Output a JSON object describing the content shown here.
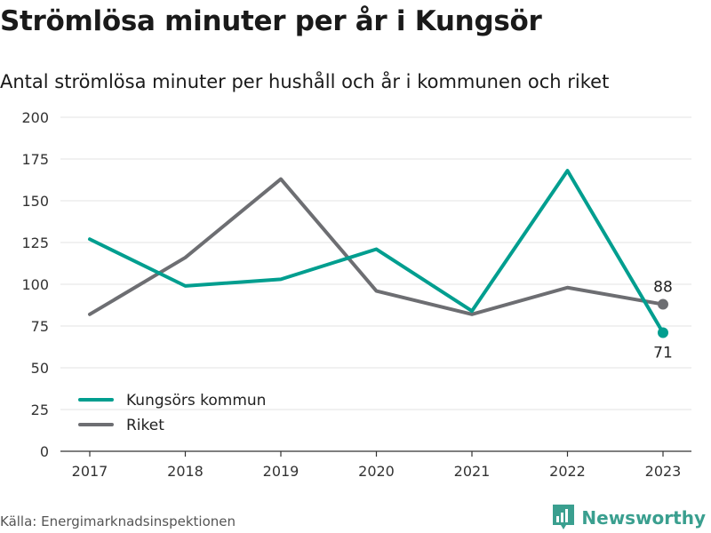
{
  "header": {
    "title": "Strömlösa minuter per år i Kungsör",
    "subtitle": "Antal strömlösa minuter per hushåll och år i kommunen och riket"
  },
  "footer": {
    "source": "Källa: Energimarknadsinspektionen",
    "brand": "Newsworthy",
    "brand_icon": "bar-chart-icon"
  },
  "colors": {
    "kungsor": "#009e8f",
    "riket": "#6d6e72",
    "brand": "#3a9f8f"
  },
  "chart_data": {
    "type": "line",
    "x": [
      "2017",
      "2018",
      "2019",
      "2020",
      "2021",
      "2022",
      "2023"
    ],
    "ylim": [
      0,
      200
    ],
    "yticks": [
      0,
      25,
      50,
      75,
      100,
      125,
      150,
      175,
      200
    ],
    "grid": true,
    "legend_position": "bottom-left",
    "series": [
      {
        "name": "Kungsörs kommun",
        "values": [
          127,
          99,
          103,
          121,
          84,
          168,
          71
        ],
        "end_label": "71"
      },
      {
        "name": "Riket",
        "values": [
          82,
          116,
          163,
          96,
          82,
          98,
          88
        ],
        "end_label": "88"
      }
    ]
  }
}
